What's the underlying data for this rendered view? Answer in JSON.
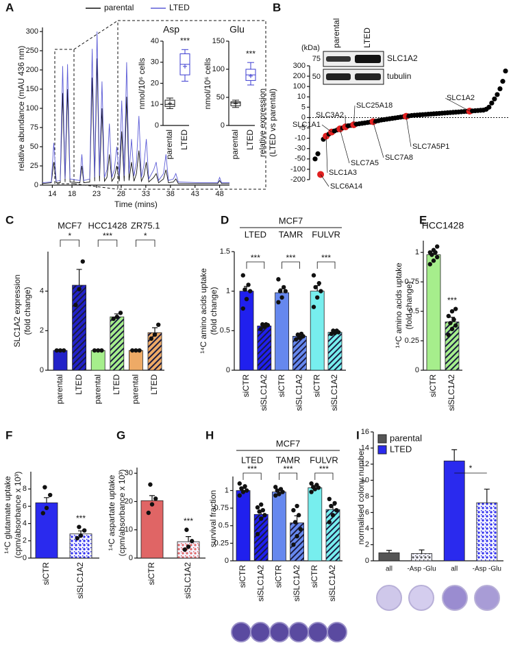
{
  "chart_data": [
    {
      "type": "line",
      "panel": "A",
      "xlabel": "Time (mins)",
      "ylabel": "relative abundance (mAU 436 nm)",
      "xlim": [
        12,
        50
      ],
      "xticks": [
        14,
        18,
        23,
        28,
        33,
        38,
        43,
        48
      ],
      "ylim": [
        0,
        300
      ],
      "yticks": [
        0,
        25,
        50,
        75,
        100,
        150,
        200,
        250,
        300
      ],
      "axis_break": true,
      "x": [
        12,
        13.8,
        14.3,
        14.8,
        15.6,
        16.1,
        16.6,
        17.1,
        17.6,
        19.6,
        20,
        20.4,
        21.6,
        22.1,
        22.6,
        23.1,
        23.6,
        24.1,
        24.6,
        25.1,
        25.6,
        26.1,
        26.6,
        27.1,
        27.6,
        28.1,
        28.6,
        29.1,
        29.6,
        30.1,
        30.6,
        31.1,
        31.6,
        32.1,
        32.6,
        33.1,
        33.6,
        34.6,
        35.1,
        35.6,
        36.6,
        37.1,
        37.6,
        38.6,
        39.1,
        39.6,
        44,
        47.6,
        48,
        48.4,
        50
      ],
      "series": [
        {
          "name": "parental",
          "color": "#111111",
          "values": [
            2,
            3,
            30,
            3,
            3,
            140,
            4,
            150,
            4,
            3,
            25,
            3,
            4,
            180,
            5,
            230,
            5,
            100,
            5,
            10,
            40,
            5,
            10,
            25,
            5,
            70,
            5,
            130,
            6,
            30,
            5,
            15,
            45,
            5,
            12,
            30,
            4,
            10,
            15,
            3,
            8,
            20,
            3,
            4,
            8,
            2,
            2,
            2,
            6,
            2,
            2
          ]
        },
        {
          "name": "LTED",
          "color": "#5b5bd6",
          "values": [
            3,
            4,
            55,
            5,
            6,
            210,
            8,
            215,
            8,
            6,
            40,
            6,
            8,
            255,
            10,
            300,
            12,
            170,
            10,
            20,
            80,
            10,
            20,
            50,
            12,
            120,
            12,
            220,
            15,
            60,
            12,
            30,
            90,
            10,
            25,
            60,
            8,
            20,
            30,
            6,
            15,
            40,
            6,
            8,
            15,
            4,
            3,
            3,
            10,
            3,
            3
          ]
        }
      ]
    },
    {
      "type": "box",
      "title": "Asp",
      "ylabel": "nmol/10⁶ cells",
      "ylim": [
        0,
        40
      ],
      "yticks": [
        0,
        10,
        20,
        30,
        40
      ],
      "categories": [
        "parental",
        "LTED"
      ],
      "colors": [
        "#111111",
        "#3a3ad0"
      ],
      "sig": "***",
      "boxes": [
        {
          "min": 8,
          "q1": 9,
          "median": 10,
          "q3": 12,
          "max": 13,
          "mean": 10.5
        },
        {
          "min": 21,
          "q1": 24,
          "median": 29,
          "q3": 34,
          "max": 36,
          "mean": 28
        }
      ]
    },
    {
      "type": "box",
      "title": "Glu",
      "ylabel": "nmol/10⁶ cells",
      "ylim": [
        0,
        150
      ],
      "yticks": [
        0,
        50,
        100,
        150
      ],
      "categories": [
        "parental",
        "LTED"
      ],
      "colors": [
        "#111111",
        "#3a3ad0"
      ],
      "sig": "***",
      "boxes": [
        {
          "min": 32,
          "q1": 35,
          "median": 40,
          "q3": 42,
          "max": 45,
          "mean": 39
        },
        {
          "min": 72,
          "q1": 80,
          "median": 90,
          "q3": 100,
          "max": 112,
          "mean": 88
        }
      ]
    },
    {
      "type": "scatter",
      "panel": "B",
      "ylabel": [
        "relative expression",
        "(LTED vs parental)"
      ],
      "ylim": [
        -200,
        300
      ],
      "yticks": [
        -200,
        -100,
        -50,
        -30,
        -10,
        -5,
        0,
        5,
        10,
        100,
        200,
        300
      ],
      "axis_break": true,
      "zero_line": true,
      "color": "#000000",
      "highlight_color": "#e02020",
      "categories": [
        null,
        null,
        "SLC6A14",
        null,
        "SLC1A3",
        null,
        "SLC1A1",
        null,
        null,
        "SLC7A5",
        null,
        "SLC3A2",
        null,
        null,
        "SLC25A18",
        null,
        null,
        null,
        null,
        null,
        null,
        "SLC7A8",
        null,
        null,
        null,
        null,
        null,
        null,
        null,
        null,
        null,
        null,
        null,
        "SLC7A5P1",
        null,
        null,
        null,
        null,
        null,
        null,
        null,
        null,
        null,
        null,
        null,
        null,
        null,
        null,
        null,
        null,
        null,
        null,
        null,
        null,
        null,
        null,
        "SLC1A2",
        null,
        null,
        null,
        null,
        null,
        null,
        null,
        null,
        null,
        null,
        null,
        null,
        null
      ],
      "values": [
        -50,
        -40,
        -150,
        -12,
        -9,
        -8,
        -7,
        -6.5,
        -6,
        -5.5,
        -5,
        -4.5,
        -4,
        -3.8,
        -3.5,
        -3.2,
        -3,
        -2.8,
        -2.6,
        -2.4,
        -2.2,
        -2,
        -1.8,
        -1.5,
        -1.2,
        -1,
        -0.8,
        -0.6,
        -0.4,
        -0.2,
        0,
        0.2,
        0.4,
        0.6,
        0.8,
        1,
        1.1,
        1.2,
        1.3,
        1.4,
        1.5,
        1.6,
        1.7,
        1.8,
        1.9,
        2,
        2.1,
        2.2,
        2.3,
        2.4,
        2.5,
        2.6,
        2.7,
        2.8,
        2.9,
        3,
        3.1,
        3.2,
        3.3,
        3.4,
        3.5,
        3.6,
        4,
        5,
        7,
        9,
        30,
        80,
        150,
        250
      ]
    },
    {
      "type": "bar",
      "panel": "C",
      "ylabel": [
        "SLC1A2 expression",
        "(fold change)"
      ],
      "ylim": [
        0,
        6
      ],
      "yticks": [
        0,
        2,
        4
      ],
      "categories": [
        "parental",
        "LTED",
        "parental",
        "LTED",
        "parental",
        "LTED"
      ],
      "values": [
        1,
        4.3,
        1,
        2.7,
        1,
        1.9
      ],
      "errors": [
        0.05,
        0.8,
        0.05,
        0.15,
        0.03,
        0.25
      ],
      "points": [
        [
          1,
          1,
          1
        ],
        [
          3.3,
          4.1,
          5.5
        ],
        [
          1,
          1,
          1
        ],
        [
          2.6,
          2.7,
          2.9
        ],
        [
          1,
          1,
          1
        ],
        [
          1.6,
          1.8,
          2.3
        ]
      ],
      "colors": [
        "#2222c8",
        "#2222c8",
        "#a6ee8c",
        "#a6ee8c",
        "#eeaa66",
        "#eeaa66"
      ],
      "hatch": [
        null,
        "stripes",
        null,
        "stripes",
        null,
        "stripes"
      ],
      "groups": [
        {
          "label": "MCF7",
          "sig": "*"
        },
        {
          "label": "HCC1428",
          "sig": "***"
        },
        {
          "label": "ZR75.1",
          "sig": "*"
        }
      ]
    },
    {
      "type": "bar",
      "panel": "D",
      "header": "MCF7",
      "ylabel": [
        "¹⁴C amino acids uptake",
        "(fold change)"
      ],
      "ylim": [
        0,
        1.5
      ],
      "yticks": [
        0,
        0.5,
        1,
        1.5
      ],
      "categories": [
        "siCTR",
        "siSLC1A2",
        "siCTR",
        "siSLC1A2",
        "siCTR",
        "siSLC1A2"
      ],
      "values": [
        1,
        0.56,
        0.98,
        0.43,
        1,
        0.48
      ],
      "errors": [
        0.06,
        0.02,
        0.05,
        0.02,
        0.07,
        0.02
      ],
      "points": [
        [
          0.78,
          0.9,
          1,
          1.02,
          1.08,
          1.2
        ],
        [
          0.52,
          0.55,
          0.57,
          0.58,
          0.58
        ],
        [
          0.86,
          0.92,
          1,
          1,
          1.05,
          1.15
        ],
        [
          0.39,
          0.41,
          0.43,
          0.45,
          0.46
        ],
        [
          0.8,
          0.92,
          1,
          1.05,
          1.1,
          1.2
        ],
        [
          0.46,
          0.47,
          0.48,
          0.5,
          0.5
        ]
      ],
      "colors": [
        "#2020ee",
        "#2020ee",
        "#6688ee",
        "#6688ee",
        "#77eeee",
        "#77eeee"
      ],
      "hatch": [
        null,
        "stripes",
        null,
        "stripes",
        null,
        "stripes"
      ],
      "groups": [
        {
          "label": "LTED",
          "sig": "***"
        },
        {
          "label": "TAMR",
          "sig": "***"
        },
        {
          "label": "FULVR",
          "sig": "***"
        }
      ]
    },
    {
      "type": "bar",
      "panel": "E",
      "title": "HCC1428",
      "ylabel": [
        "¹⁴C amino acids uptake",
        "(fold change)"
      ],
      "ylim": [
        0,
        1.1
      ],
      "yticks": [
        0,
        0.25,
        0.5,
        0.75,
        1
      ],
      "categories": [
        "siCTR",
        "siSLC1A2"
      ],
      "values": [
        0.98,
        0.41
      ],
      "errors": [
        0.03,
        0.04
      ],
      "points": [
        [
          0.9,
          0.93,
          0.96,
          0.98,
          1,
          1,
          1.02,
          1.05
        ],
        [
          0.3,
          0.35,
          0.38,
          0.4,
          0.43,
          0.46,
          0.5,
          0.52
        ]
      ],
      "colors": [
        "#a6ee8c",
        "#a6ee8c"
      ],
      "hatch": [
        null,
        "stripes"
      ],
      "sig": "***"
    },
    {
      "type": "bar",
      "panel": "F",
      "ylabel": [
        "¹⁴C glutamate uptake",
        "(cpm/absorbance x 10³)"
      ],
      "ylim": [
        0,
        10
      ],
      "yticks": [
        0,
        2,
        4,
        6,
        8
      ],
      "categories": [
        "siCTR",
        "siSLC1A2"
      ],
      "values": [
        6.4,
        2.8
      ],
      "errors": [
        0.6,
        0.35
      ],
      "points": [
        [
          5.2,
          5.8,
          7.3,
          8.2
        ],
        [
          2.3,
          2.6,
          3.2,
          3.6
        ]
      ],
      "colors": [
        "#2a2aee",
        "#2a2aee"
      ],
      "hatch": [
        null,
        "dots"
      ],
      "sig": "***"
    },
    {
      "type": "bar",
      "panel": "G",
      "ylabel": [
        "¹⁴C aspartate uptake",
        "(cpm/absorbance x 10³)"
      ],
      "ylim": [
        0,
        32
      ],
      "yticks": [
        0,
        10,
        20,
        30
      ],
      "categories": [
        "siCTR",
        "siSLC1A2"
      ],
      "values": [
        20.3,
        5.8
      ],
      "errors": [
        1.8,
        1.8
      ],
      "points": [
        [
          16,
          19,
          21,
          26
        ],
        [
          3,
          4,
          6,
          10
        ]
      ],
      "colors": [
        "#e06565",
        "#e06565"
      ],
      "hatch": [
        null,
        "dots"
      ],
      "sig": "***"
    },
    {
      "type": "bar",
      "panel": "H",
      "header": "MCF7",
      "ylabel": [
        "survival fraction"
      ],
      "ylim": [
        0,
        1.2
      ],
      "yticks": [
        0,
        0.25,
        0.5,
        0.75,
        1
      ],
      "categories": [
        "siCTR",
        "siSLC1A2",
        "siCTR",
        "siSLC1A2",
        "siCTR",
        "siSLC1A2"
      ],
      "values": [
        1,
        0.66,
        0.98,
        0.54,
        1.04,
        0.73
      ],
      "errors": [
        0.03,
        0.05,
        0.02,
        0.1,
        0.03,
        0.06
      ],
      "points": [
        [
          0.93,
          0.98,
          1,
          1.03,
          1.06,
          1.1
        ],
        [
          0.38,
          0.6,
          0.65,
          0.7,
          0.72,
          0.76,
          0.8
        ],
        [
          0.93,
          0.95,
          0.98,
          1,
          1.02,
          1.05
        ],
        [
          0.23,
          0.35,
          0.45,
          0.55,
          0.65,
          0.72,
          0.78
        ],
        [
          0.98,
          1.02,
          1.04,
          1.05,
          1.08,
          1.1
        ],
        [
          0.55,
          0.65,
          0.72,
          0.78,
          0.82,
          0.88
        ]
      ],
      "colors": [
        "#2020ee",
        "#2020ee",
        "#6688ee",
        "#6688ee",
        "#77eeee",
        "#77eeee"
      ],
      "hatch": [
        null,
        "stripes",
        null,
        "stripes",
        null,
        "stripes"
      ],
      "groups": [
        {
          "label": "LTED",
          "sig": "***"
        },
        {
          "label": "TAMR",
          "sig": "***"
        },
        {
          "label": "FULVR",
          "sig": "***"
        }
      ]
    },
    {
      "type": "bar",
      "panel": "I",
      "ylabel": [
        "normalised colony number"
      ],
      "ylim": [
        0,
        16
      ],
      "yticks": [
        0,
        2,
        4,
        6,
        8,
        10,
        12,
        14,
        16
      ],
      "categories": [
        "all",
        "-Asp -Glu",
        "all",
        "-Asp -Glu"
      ],
      "values": [
        1,
        0.9,
        12.4,
        7.2
      ],
      "errors": [
        0.3,
        0.45,
        1.4,
        1.7
      ],
      "colors": [
        "#555555",
        "#555555",
        "#2a2aee",
        "#2a2aee"
      ],
      "hatch": [
        null,
        "dots",
        null,
        "dots"
      ],
      "bracket_sig": "*",
      "legend": [
        {
          "name": "parental",
          "color": "#555555"
        },
        {
          "name": "LTED",
          "color": "#2a2aee"
        }
      ],
      "legend_position": "upper left"
    }
  ],
  "blot": {
    "lanes": [
      "parental",
      "LTED"
    ],
    "unit": "(kDa)",
    "markers": [
      75,
      50
    ],
    "bands": [
      "SLC1A2",
      "tubulin"
    ]
  }
}
